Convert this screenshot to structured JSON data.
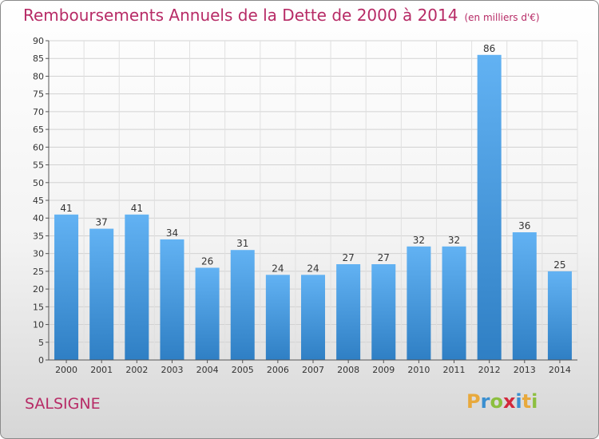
{
  "title": "Remboursements Annuels de la Dette de 2000 à 2014",
  "unit_note": "(en milliers d'€)",
  "commune": "SALSIGNE",
  "logo": {
    "letters": [
      "P",
      "r",
      "o",
      "x",
      "i",
      "t",
      "i"
    ],
    "colors": [
      "#e8a93c",
      "#3a8fd0",
      "#8cbf3f",
      "#d2293c",
      "#3a8fd0",
      "#e8a93c",
      "#8cbf3f"
    ]
  },
  "chart_data": {
    "type": "bar",
    "categories": [
      "2000",
      "2001",
      "2002",
      "2003",
      "2004",
      "2005",
      "2006",
      "2007",
      "2008",
      "2009",
      "2010",
      "2011",
      "2012",
      "2013",
      "2014"
    ],
    "values": [
      41,
      37,
      41,
      34,
      26,
      31,
      24,
      24,
      27,
      27,
      32,
      32,
      86,
      36,
      25
    ],
    "ylim": [
      0,
      90
    ],
    "ytick_step": 5,
    "grid": true,
    "bar_color": "#4a9be0",
    "title": "Remboursements Annuels de la Dette de 2000 à 2014",
    "xlabel": "",
    "ylabel": ""
  }
}
